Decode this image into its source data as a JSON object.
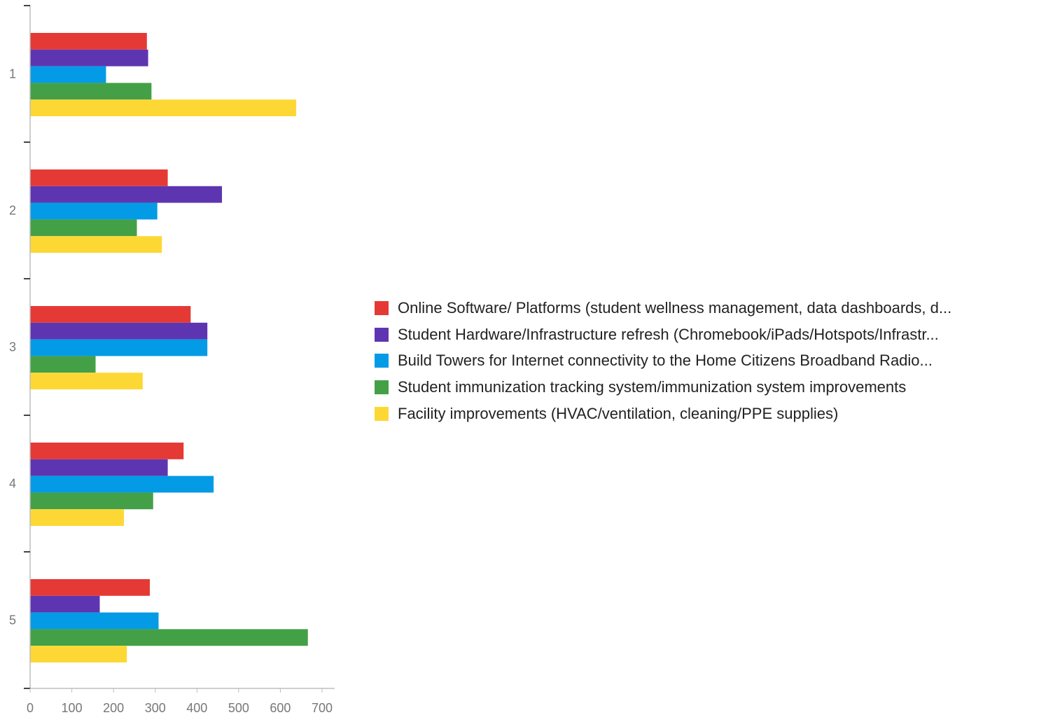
{
  "chart_data": {
    "type": "bar",
    "orientation": "horizontal",
    "categories": [
      "1",
      "2",
      "3",
      "4",
      "5"
    ],
    "series": [
      {
        "name": "Online Software/ Platforms (student wellness management, data dashboards, d...",
        "color": "#e53935",
        "values": [
          280,
          330,
          385,
          368,
          287
        ]
      },
      {
        "name": "Student Hardware/Infrastructure refresh (Chromebook/iPads/Hotspots/Infrastr...",
        "color": "#5e35b1",
        "values": [
          283,
          460,
          425,
          330,
          167
        ]
      },
      {
        "name": "Build Towers for Internet connectivity to the Home Citizens Broadband Radio...",
        "color": "#039be5",
        "values": [
          182,
          305,
          425,
          440,
          308
        ]
      },
      {
        "name": "Student immunization tracking system/immunization system improvements",
        "color": "#43a047",
        "values": [
          291,
          256,
          157,
          295,
          666
        ]
      },
      {
        "name": "Facility improvements (HVAC/ventilation, cleaning/PPE supplies)",
        "color": "#fdd835",
        "values": [
          638,
          316,
          270,
          225,
          232
        ]
      }
    ],
    "xticks": [
      "0",
      "100",
      "200",
      "300",
      "400",
      "500",
      "600",
      "700"
    ],
    "xlim": [
      0,
      730
    ],
    "title": "",
    "xlabel": "",
    "ylabel": "",
    "grid": false,
    "legend_position": "right"
  }
}
